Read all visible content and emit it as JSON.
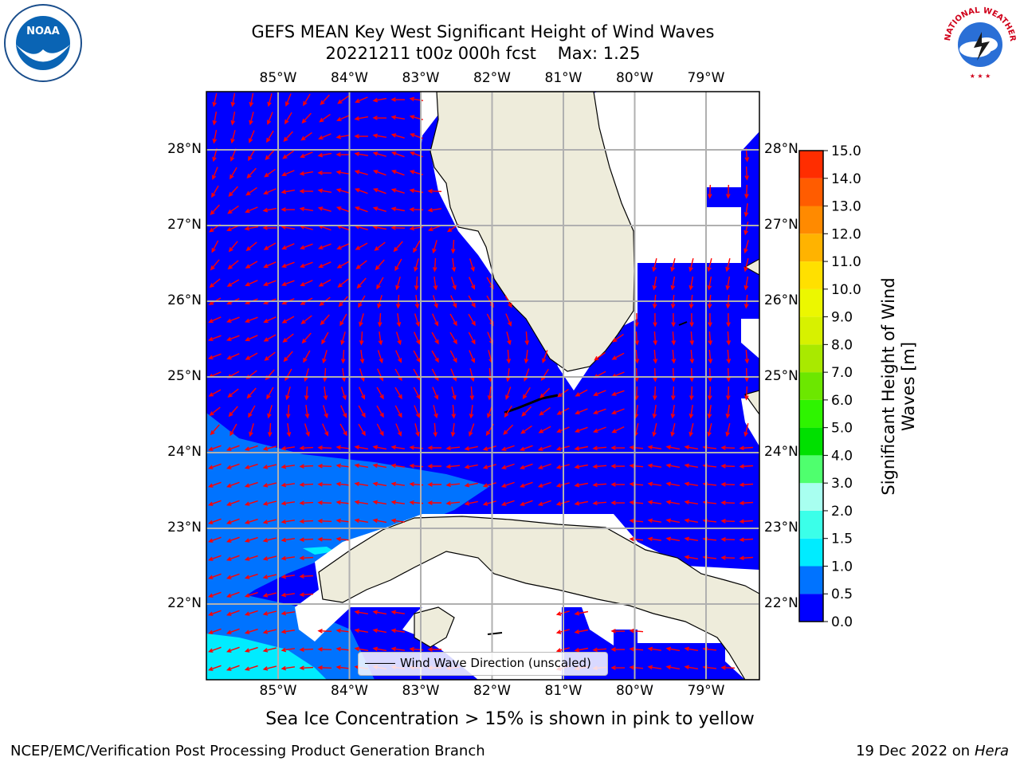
{
  "title": {
    "line1": "GEFS MEAN Key West Significant Height of Wind Waves",
    "line2": "20221211 t00z 000h fcst    Max: 1.25"
  },
  "map": {
    "lon_labels": [
      "85°W",
      "84°W",
      "83°W",
      "82°W",
      "81°W",
      "80°W",
      "79°W"
    ],
    "lat_labels": [
      "28°N",
      "27°N",
      "26°N",
      "25°N",
      "24°N",
      "23°N",
      "22°N"
    ],
    "legend_label": "Wind Wave Direction (unscaled)",
    "colors": {
      "land": "#eeecdb",
      "grid": "#b0b0b0",
      "arrow": "#ff0000",
      "coast": "#000000"
    }
  },
  "colorbar": {
    "label": "Significant Height of Wind Waves [m]",
    "ticks": [
      "0.0",
      "0.5",
      "1.0",
      "1.5",
      "2.0",
      "3.0",
      "4.0",
      "5.0",
      "6.0",
      "7.0",
      "8.0",
      "9.0",
      "10.0",
      "11.0",
      "12.0",
      "13.0",
      "14.0",
      "15.0"
    ],
    "colors": [
      "#0000ff",
      "#0073ff",
      "#00ecff",
      "#3bffe9",
      "#a8fff0",
      "#4fff6e",
      "#00e000",
      "#2ef400",
      "#6ce700",
      "#a9e900",
      "#d7f100",
      "#ecf700",
      "#ffe000",
      "#ffb300",
      "#ff8a00",
      "#ff5c00",
      "#ff2d00",
      "#ff0000"
    ]
  },
  "logos": {
    "noaa": "NOAA",
    "nws": "NATIONAL WEATHER SERVICE"
  },
  "footer": {
    "sea_ice_note": "Sea Ice Concentration > 15% is shown in pink to yellow",
    "left": "NCEP/EMC/Verification Post Processing Product Generation Branch",
    "right_date": "19 Dec 2022 on",
    "right_machine": "Hera"
  }
}
